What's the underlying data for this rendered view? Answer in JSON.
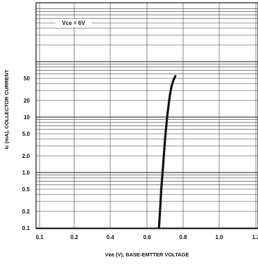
{
  "chart_data": {
    "type": "line",
    "title": "",
    "xlabel": "VBE (V), BASE-EMITTER VOLTAGE",
    "xlabel_display": "Vʙᴇ (V), BASE-EMTTER VOLTAGE",
    "ylabel": "Ic (mA), COLLECTOR CURRENT",
    "xlim": [
      0.1,
      1.2
    ],
    "ylim": [
      0.1,
      1000
    ],
    "y_scale": "log",
    "grid": true,
    "x_ticks": [
      0.1,
      0.2,
      0.4,
      0.6,
      0.8,
      1.0,
      1.2
    ],
    "x_tick_labels": [
      "0.1",
      "0.2",
      "0.4",
      "0.6",
      "0.8",
      "1.0",
      "1.2"
    ],
    "y_ticks": [
      0.1,
      0.2,
      0.5,
      1.0,
      2.0,
      5.0,
      10,
      20,
      50
    ],
    "y_tick_labels": [
      "0.1",
      "0.2",
      "0.5",
      "1.0",
      "2.0",
      "5.0",
      "10",
      "20",
      "50"
    ],
    "annotations": [
      {
        "text": "VCE = 6V",
        "display": "Vce = 6V",
        "at_data": [
          0.26,
          500
        ]
      }
    ],
    "series": [
      {
        "x": [
          0.666,
          0.672,
          0.679,
          0.686,
          0.693,
          0.7,
          0.707,
          0.713,
          0.72,
          0.727,
          0.735,
          0.745,
          0.757
        ],
        "y": [
          0.1,
          0.2,
          0.5,
          1.0,
          2.0,
          4.0,
          7.0,
          11.0,
          17.0,
          25.0,
          35.0,
          45.0,
          55.0
        ]
      }
    ]
  }
}
